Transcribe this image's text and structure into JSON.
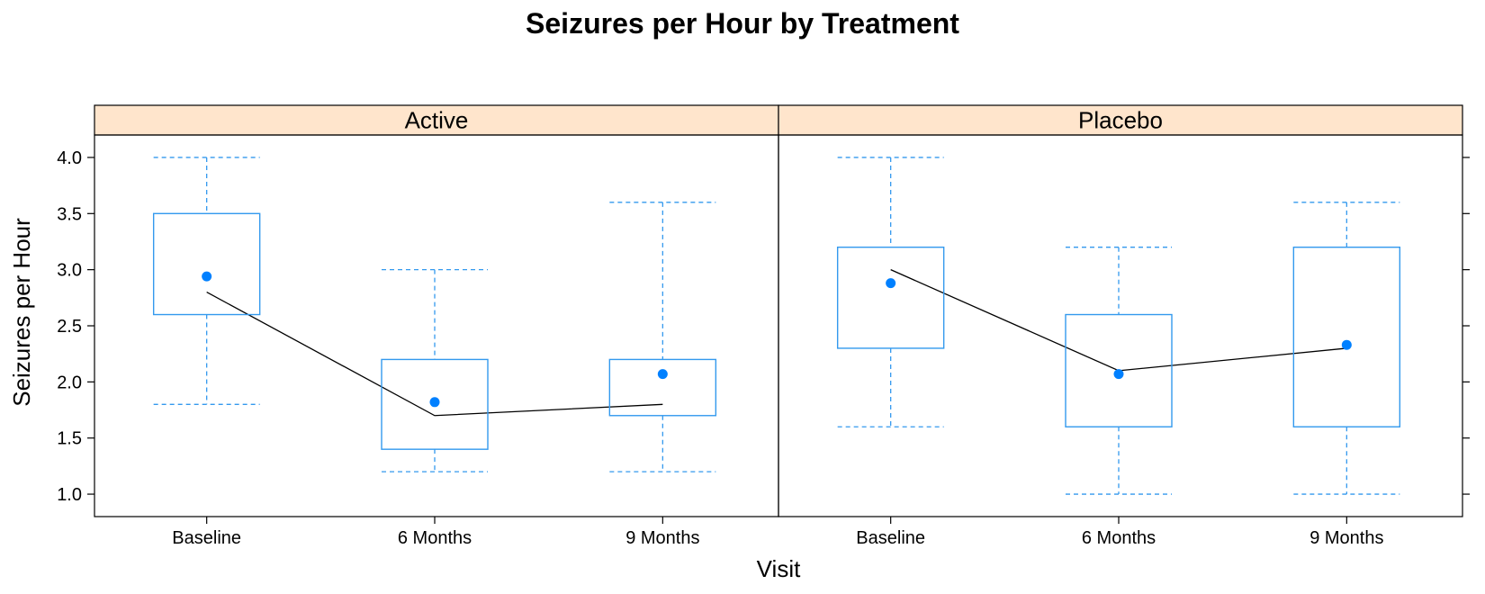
{
  "chart_data": {
    "type": "box",
    "title": "Seizures per Hour by Treatment",
    "xlabel": "Visit",
    "ylabel": "Seizures per Hour",
    "ylim": [
      0.8,
      4.2
    ],
    "yticks": [
      "1.0",
      "1.5",
      "2.0",
      "2.5",
      "3.0",
      "3.5",
      "4.0"
    ],
    "categories": [
      "Baseline",
      "6 Months",
      "9 Months"
    ],
    "colors": {
      "box": "#3399ee",
      "mean_dot": "#0080ff",
      "median_line": "#000000",
      "strip": "#ffe5cc"
    },
    "panels": [
      {
        "name": "Active",
        "boxes": [
          {
            "category": "Baseline",
            "min": 1.8,
            "q1": 2.6,
            "q3": 3.5,
            "max": 4.0,
            "median": 2.8,
            "mean": 2.94
          },
          {
            "category": "6 Months",
            "min": 1.2,
            "q1": 1.4,
            "q3": 2.2,
            "max": 3.0,
            "median": 1.7,
            "mean": 1.82
          },
          {
            "category": "9 Months",
            "min": 1.2,
            "q1": 1.7,
            "q3": 2.2,
            "max": 3.6,
            "median": 1.8,
            "mean": 2.07
          }
        ]
      },
      {
        "name": "Placebo",
        "boxes": [
          {
            "category": "Baseline",
            "min": 1.6,
            "q1": 2.3,
            "q3": 3.2,
            "max": 4.0,
            "median": 3.0,
            "mean": 2.88
          },
          {
            "category": "6 Months",
            "min": 1.0,
            "q1": 1.6,
            "q3": 2.6,
            "max": 3.2,
            "median": 2.1,
            "mean": 2.07
          },
          {
            "category": "9 Months",
            "min": 1.0,
            "q1": 1.6,
            "q3": 3.2,
            "max": 3.6,
            "median": 2.3,
            "mean": 2.33
          }
        ]
      }
    ]
  }
}
